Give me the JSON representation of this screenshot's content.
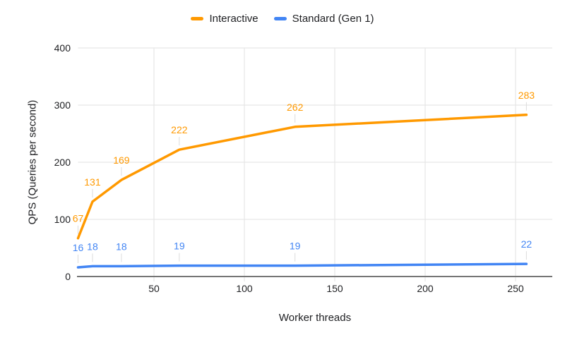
{
  "chart_data": {
    "type": "line",
    "x": [
      8,
      16,
      32,
      64,
      128,
      256
    ],
    "series": [
      {
        "name": "Interactive",
        "color": "#FF9900",
        "values": [
          67,
          131,
          169,
          222,
          262,
          283
        ]
      },
      {
        "name": "Standard (Gen 1)",
        "color": "#4285F4",
        "values": [
          16,
          18,
          18,
          19,
          19,
          22
        ]
      }
    ],
    "title": "",
    "xlabel": "Worker threads",
    "ylabel": "QPS (Queries per second)",
    "ylim": [
      0,
      400
    ],
    "yticks": [
      0,
      100,
      200,
      300,
      400
    ],
    "xticks": [
      50,
      100,
      150,
      200,
      250
    ],
    "grid": true,
    "data_labels": true,
    "legend_position": "top",
    "colors": {
      "gridline": "#e6e6e6",
      "axis_line": "#757575",
      "tick_label": "#202124",
      "leader_line": "#dcdcdc",
      "background": "#ffffff"
    }
  }
}
